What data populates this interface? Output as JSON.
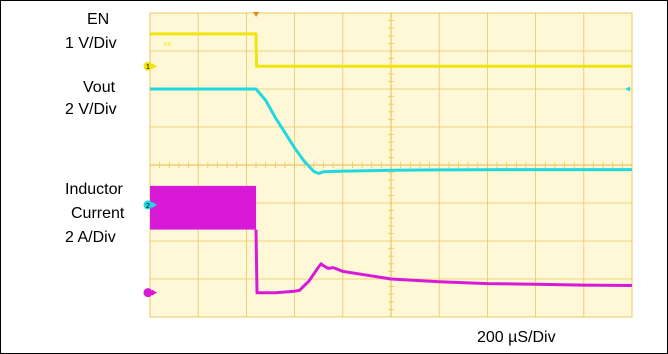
{
  "chart_data": {
    "type": "line",
    "title": "",
    "xlabel": "",
    "ylabel": "",
    "time_scale": "200 µS/Div",
    "grid": true,
    "grid_divisions": {
      "x": 10,
      "y": 8
    },
    "background_color": "#fff8d6",
    "grid_color": "#e8c860",
    "x_unit": "div",
    "xlim": [
      0,
      10
    ],
    "ylim": [
      0,
      8
    ],
    "channels": [
      {
        "name": "EN",
        "scale": "1 V/Div",
        "color": "#f0e410",
        "marker": "1",
        "x": [
          0,
          2.2,
          2.21,
          10
        ],
        "y": [
          7.45,
          7.45,
          6.6,
          6.6
        ]
      },
      {
        "name": "Vout",
        "scale": "2 V/Div",
        "color": "#22d8e0",
        "x": [
          0,
          2.2,
          2.4,
          2.6,
          2.8,
          3.0,
          3.2,
          3.4,
          3.5,
          3.6,
          4.0,
          5.0,
          6.0,
          8.0,
          10.0
        ],
        "y": [
          6.0,
          6.0,
          5.7,
          5.25,
          4.85,
          4.45,
          4.1,
          3.83,
          3.78,
          3.82,
          3.84,
          3.86,
          3.87,
          3.88,
          3.88
        ]
      },
      {
        "name": "Inductor Current",
        "scale": "2 A/Div",
        "color": "#d81ad8",
        "marker": "2",
        "x": [
          2.22,
          2.6,
          3.0,
          3.1,
          3.3,
          3.5,
          3.55,
          3.6,
          3.7,
          3.8,
          3.9,
          4.0,
          4.5,
          5.0,
          6.0,
          7.0,
          8.0,
          9.0,
          10.0
        ],
        "y": [
          0.64,
          0.64,
          0.68,
          0.7,
          0.95,
          1.32,
          1.4,
          1.35,
          1.28,
          1.3,
          1.25,
          1.2,
          1.1,
          1.0,
          0.93,
          0.88,
          0.86,
          0.84,
          0.83
        ],
        "switching_band": {
          "x": [
            0,
            2.2
          ],
          "y": [
            2.3,
            3.45
          ]
        }
      }
    ]
  },
  "labels": {
    "en_name": "EN",
    "en_scale": "1 V/Div",
    "vout_name": "Vout",
    "vout_scale": "2 V/Div",
    "il_name_1": "Inductor",
    "il_name_2": "Current",
    "il_scale": "2 A/Div",
    "timebase": "200 µS/Div"
  },
  "markers": {
    "ch1": "1",
    "ch2": "2"
  }
}
